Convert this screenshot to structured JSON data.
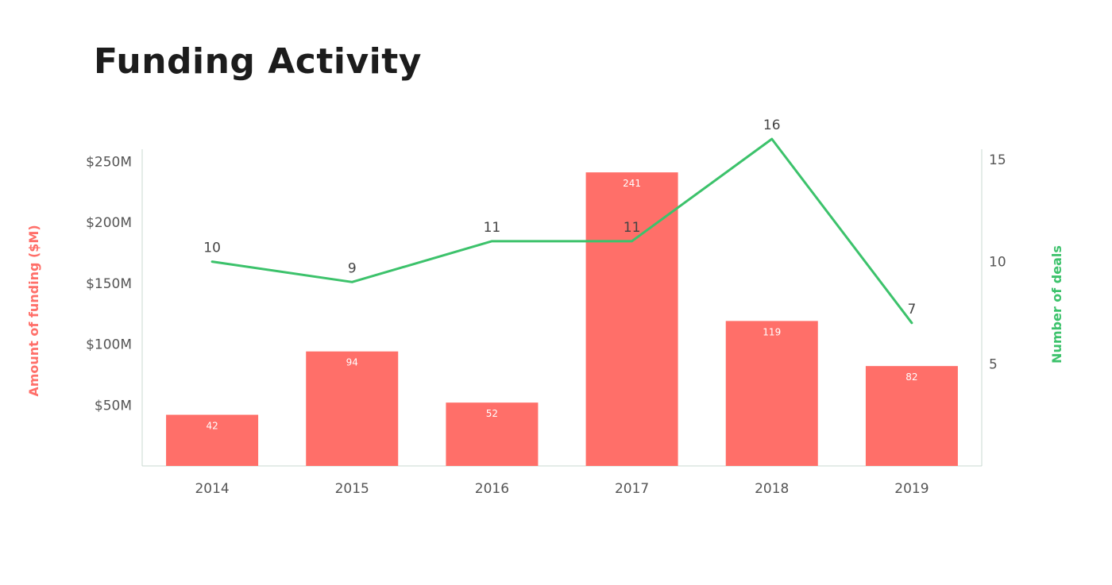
{
  "chart_data": {
    "type": "bar",
    "title": "Funding Activity",
    "categories": [
      "2014",
      "2015",
      "2016",
      "2017",
      "2018",
      "2019"
    ],
    "series": [
      {
        "name": "Amount of funding ($M)",
        "type": "bar",
        "axis": "left",
        "color": "#FF6F69",
        "values": [
          42,
          94,
          52,
          241,
          119,
          82
        ]
      },
      {
        "name": "Number of deals",
        "type": "line",
        "axis": "right",
        "color": "#3CC26B",
        "values": [
          10,
          9,
          11,
          11,
          16,
          7
        ]
      }
    ],
    "ylabel_left": "Amount of funding ($M)",
    "ylabel_right": "Number of deals",
    "ylim_left": [
      0,
      260
    ],
    "ylim_right": [
      0,
      15.5
    ],
    "y_ticks_left": [
      {
        "value": 50,
        "label": "$50M"
      },
      {
        "value": 100,
        "label": "$100M"
      },
      {
        "value": 150,
        "label": "$150M"
      },
      {
        "value": 200,
        "label": "$200M"
      },
      {
        "value": 250,
        "label": "$250M"
      }
    ],
    "y_ticks_right": [
      {
        "value": 5,
        "label": "5"
      },
      {
        "value": 10,
        "label": "10"
      },
      {
        "value": 15,
        "label": "15"
      }
    ],
    "grid": false,
    "legend": "none"
  }
}
